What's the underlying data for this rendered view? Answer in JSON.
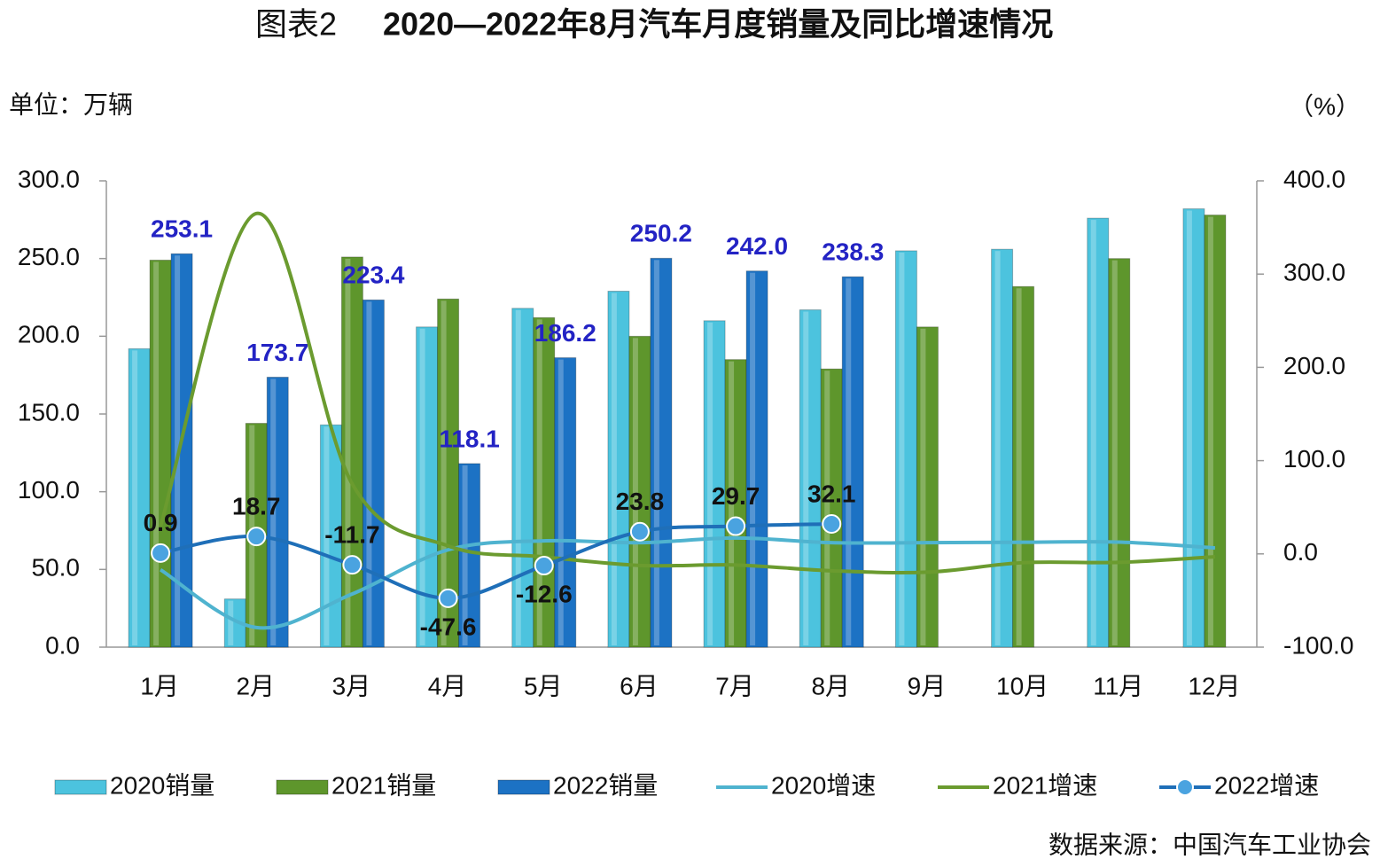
{
  "chart_data": {
    "type": "bar_line",
    "figure_label": "图表2",
    "title": "2020—2022年8月汽车月度销量及同比增速情况",
    "y_label": "单位：万辆",
    "y2_label": "（%）",
    "source": "数据来源：中国汽车工业协会",
    "categories": [
      "1月",
      "2月",
      "3月",
      "4月",
      "5月",
      "6月",
      "7月",
      "8月",
      "9月",
      "10月",
      "11月",
      "12月"
    ],
    "ylim": [
      0,
      300
    ],
    "yticks": [
      {
        "value": 0,
        "label": "0.0"
      },
      {
        "value": 50,
        "label": "50.0"
      },
      {
        "value": 100,
        "label": "100.0"
      },
      {
        "value": 150,
        "label": "150.0"
      },
      {
        "value": 200,
        "label": "200.0"
      },
      {
        "value": 250,
        "label": "250.0"
      },
      {
        "value": 300,
        "label": "300.0"
      }
    ],
    "y2lim": [
      -100,
      400
    ],
    "y2ticks": [
      {
        "value": -100,
        "label": "-100.0"
      },
      {
        "value": 0,
        "label": "0.0"
      },
      {
        "value": 100,
        "label": "100.0"
      },
      {
        "value": 200,
        "label": "200.0"
      },
      {
        "value": 300,
        "label": "300.0"
      },
      {
        "value": 400,
        "label": "400.0"
      }
    ],
    "series": [
      {
        "name": "2020销量",
        "type": "bar",
        "color": "#4cc3de",
        "values": [
          192,
          31,
          143,
          206,
          218,
          229,
          210,
          217,
          255,
          256,
          276,
          282
        ]
      },
      {
        "name": "2021销量",
        "type": "bar",
        "color": "#5e962c",
        "values": [
          249,
          144,
          251,
          224,
          212,
          200,
          185,
          179,
          206,
          232,
          250,
          278
        ]
      },
      {
        "name": "2022销量",
        "type": "bar",
        "color": "#1c72c4",
        "values": [
          253.1,
          173.7,
          223.4,
          118.1,
          186.2,
          250.2,
          242.0,
          238.3,
          null,
          null,
          null,
          null
        ],
        "value_labels": [
          "253.1",
          "173.7",
          "223.4",
          "118.1",
          "186.2",
          "250.2",
          "242.0",
          "238.3",
          null,
          null,
          null,
          null
        ]
      },
      {
        "name": "2020增速",
        "type": "line",
        "axis": "y2",
        "color": "#4fb3cf",
        "values": [
          -17,
          -79,
          -43,
          4.4,
          14,
          12,
          17,
          12,
          12,
          12.5,
          12.6,
          6.4
        ]
      },
      {
        "name": "2021增速",
        "type": "line",
        "axis": "y2",
        "color": "#6b9b2f",
        "values": [
          29.5,
          365,
          75,
          8.6,
          -3.1,
          -12.4,
          -11.9,
          -18.1,
          -19.6,
          -9.4,
          -9.1,
          -3
        ]
      },
      {
        "name": "2022增速",
        "type": "line",
        "axis": "y2",
        "color": "#1f6fb8",
        "marker": true,
        "values": [
          0.9,
          18.7,
          -11.7,
          -47.6,
          -12.6,
          23.8,
          29.7,
          32.1,
          null,
          null,
          null,
          null
        ]
      }
    ]
  }
}
